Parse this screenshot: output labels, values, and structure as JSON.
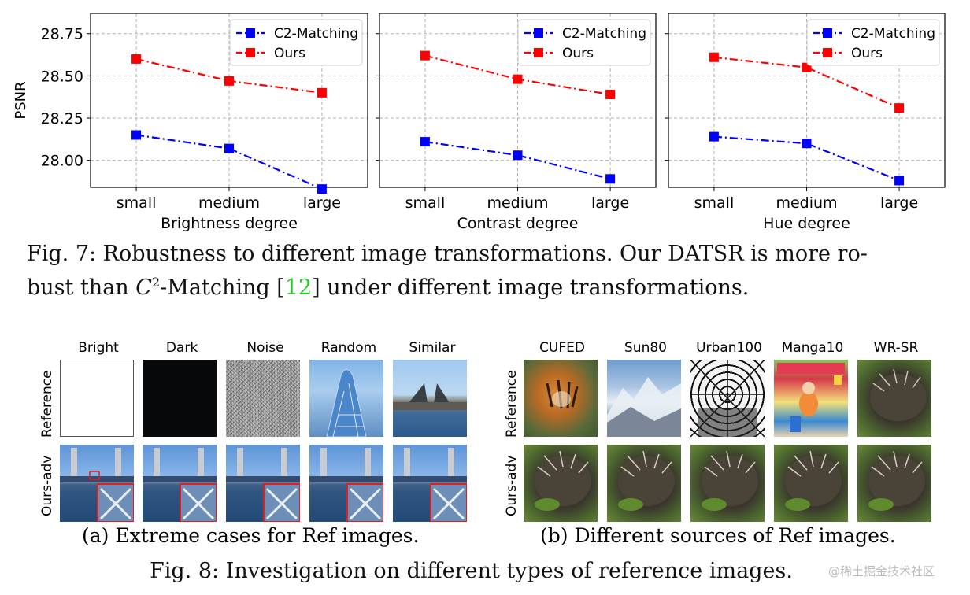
{
  "chart_data": [
    {
      "type": "line",
      "categories": [
        "small",
        "medium",
        "large"
      ],
      "xlabel": "Brightness degree",
      "ylabel": "PSNR",
      "ylim": [
        27.84,
        28.87
      ],
      "yticks": [
        "28.00",
        "28.25",
        "28.50",
        "28.75"
      ],
      "grid": true,
      "legend": "top-right",
      "series": [
        {
          "name": "C2-Matching",
          "color": "#0000ff",
          "values": [
            28.15,
            28.07,
            27.83
          ]
        },
        {
          "name": "Ours",
          "color": "#ff0000",
          "values": [
            28.6,
            28.47,
            28.4
          ]
        }
      ]
    },
    {
      "type": "line",
      "categories": [
        "small",
        "medium",
        "large"
      ],
      "xlabel": "Contrast degree",
      "ylabel": "",
      "ylim": [
        27.84,
        28.87
      ],
      "grid": true,
      "legend": "top-right",
      "series": [
        {
          "name": "C2-Matching",
          "color": "#0000ff",
          "values": [
            28.11,
            28.03,
            27.89
          ]
        },
        {
          "name": "Ours",
          "color": "#ff0000",
          "values": [
            28.62,
            28.48,
            28.39
          ]
        }
      ]
    },
    {
      "type": "line",
      "categories": [
        "small",
        "medium",
        "large"
      ],
      "xlabel": "Hue degree",
      "ylabel": "",
      "ylim": [
        27.84,
        28.87
      ],
      "grid": true,
      "legend": "top-right",
      "series": [
        {
          "name": "C2-Matching",
          "color": "#0000ff",
          "values": [
            28.14,
            28.1,
            27.88
          ]
        },
        {
          "name": "Ours",
          "color": "#ff0000",
          "values": [
            28.61,
            28.55,
            28.31
          ]
        }
      ]
    }
  ],
  "fig7": {
    "line1": "Fig. 7: Robustness to different image transformations. Our DATSR is more ro-",
    "line2_pre": "bust than ",
    "line2_c": "C",
    "line2_sup": "2",
    "line2_mid": "-Matching [",
    "line2_ref": "12",
    "line2_post": "] under different image transformations."
  },
  "fig8": {
    "panel_a": {
      "columns": [
        "Bright",
        "Dark",
        "Noise",
        "Random",
        "Similar"
      ],
      "rows": [
        "Reference",
        "Ours-adv"
      ],
      "caption": "(a) Extreme cases for Ref images."
    },
    "panel_b": {
      "columns": [
        "CUFED",
        "Sun80",
        "Urban100",
        "Manga10",
        "WR-SR"
      ],
      "rows": [
        "Reference",
        "Ours-adv"
      ],
      "caption": "(b) Different sources of Ref images."
    },
    "caption": "Fig. 8: Investigation on different types of reference images."
  },
  "watermark": "@稀土掘金技术社区",
  "colors": {
    "c2": "#0000ff",
    "ours": "#ff0000",
    "citation": "#22cc22",
    "zoom_box": "#e02020"
  }
}
